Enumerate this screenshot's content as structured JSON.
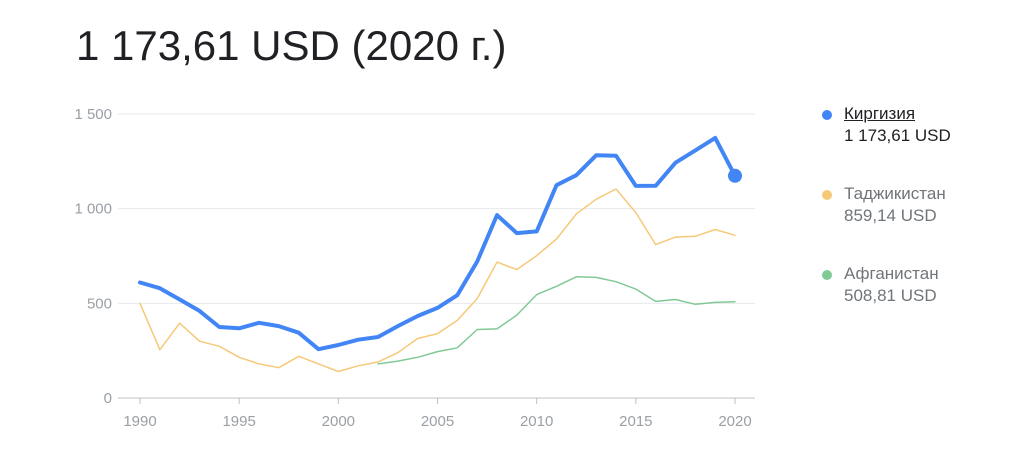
{
  "headline": "1 173,61 USD (2020 г.)",
  "chart_data": {
    "type": "line",
    "xlim": [
      1990,
      2020
    ],
    "ylim": [
      0,
      1500
    ],
    "x_ticks": [
      1990,
      1995,
      2000,
      2005,
      2010,
      2015,
      2020
    ],
    "y_ticks": [
      0,
      500,
      1000,
      1500
    ],
    "x_tick_labels": [
      "1990",
      "1995",
      "2000",
      "2005",
      "2010",
      "2015",
      "2020"
    ],
    "y_tick_labels": [
      "0",
      "500",
      "1 000",
      "1 500"
    ],
    "grid": true,
    "legend_position": "right",
    "series": [
      {
        "name": "Киргизия",
        "value_label": "1 173,61 USD",
        "color": "#4285f4",
        "x": [
          1990,
          1991,
          1992,
          1993,
          1994,
          1995,
          1996,
          1997,
          1998,
          1999,
          2000,
          2001,
          2002,
          2003,
          2004,
          2005,
          2006,
          2007,
          2008,
          2009,
          2010,
          2011,
          2012,
          2013,
          2014,
          2015,
          2016,
          2017,
          2018,
          2019,
          2020
        ],
        "values": [
          610,
          580,
          520,
          460,
          375,
          368,
          397,
          380,
          345,
          258,
          280,
          308,
          322,
          380,
          433,
          476,
          543,
          721,
          966,
          871,
          880,
          1124,
          1177,
          1282,
          1280,
          1120,
          1121,
          1243,
          1308,
          1374,
          1173.61
        ]
      },
      {
        "name": "Таджикистан",
        "value_label": "859,14 USD",
        "color": "#f6c979",
        "x": [
          1990,
          1991,
          1992,
          1993,
          1994,
          1995,
          1996,
          1997,
          1998,
          1999,
          2000,
          2001,
          2002,
          2003,
          2004,
          2005,
          2006,
          2007,
          2008,
          2009,
          2010,
          2011,
          2012,
          2013,
          2014,
          2015,
          2016,
          2017,
          2018,
          2019,
          2020
        ],
        "values": [
          500,
          255,
          395,
          300,
          273,
          215,
          180,
          160,
          220,
          180,
          140,
          170,
          190,
          239,
          314,
          340,
          410,
          525,
          718,
          678,
          752,
          840,
          972,
          1050,
          1104,
          980,
          810,
          850,
          854,
          890,
          859.14
        ]
      },
      {
        "name": "Афганистан",
        "value_label": "508,81 USD",
        "color": "#81c995",
        "x": [
          2002,
          2003,
          2004,
          2005,
          2006,
          2007,
          2008,
          2009,
          2010,
          2011,
          2012,
          2013,
          2014,
          2015,
          2016,
          2017,
          2018,
          2019,
          2020
        ],
        "values": [
          180,
          195,
          215,
          245,
          265,
          362,
          365,
          438,
          546,
          590,
          640,
          637,
          614,
          575,
          510,
          520,
          495,
          505,
          508.81
        ]
      }
    ]
  }
}
